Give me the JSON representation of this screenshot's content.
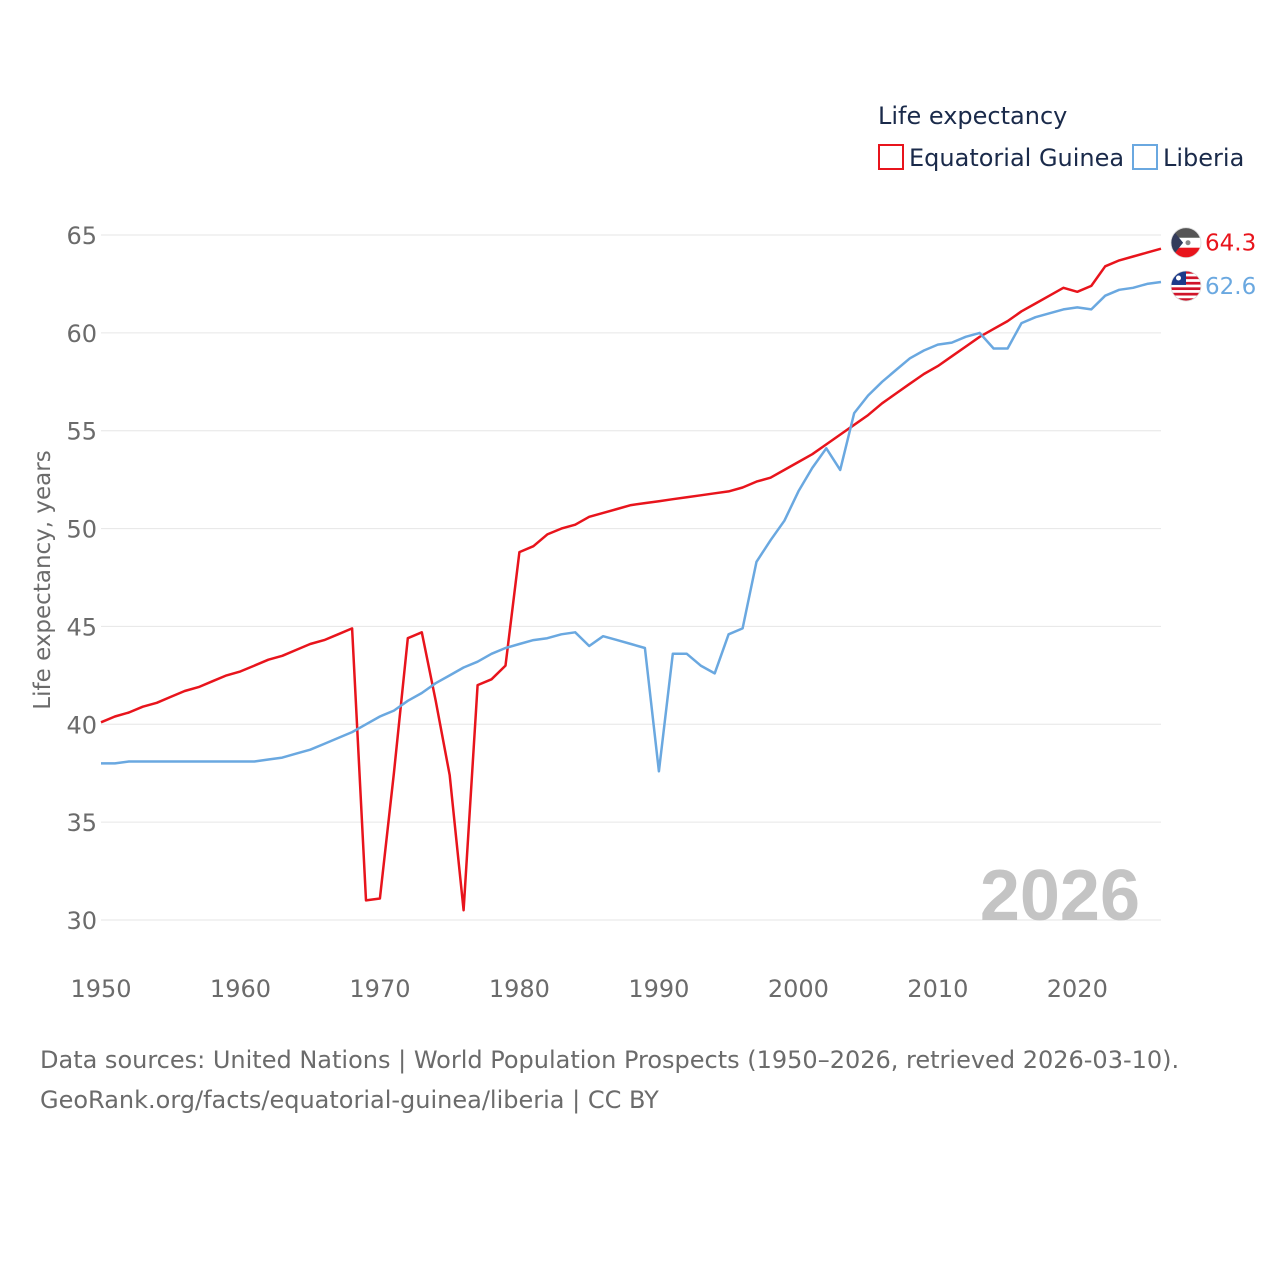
{
  "chart_data": {
    "type": "line",
    "title": "",
    "legend_title": "Life expectancy",
    "legend_position": "top-right",
    "ylabel": "Life expectancy, years",
    "xlabel": "",
    "xlim": [
      1950,
      2026
    ],
    "ylim": [
      28,
      65.5
    ],
    "x_ticks": [
      "1950",
      "1960",
      "1970",
      "1980",
      "1990",
      "2000",
      "2010",
      "2020"
    ],
    "y_ticks": [
      "30",
      "35",
      "40",
      "45",
      "50",
      "55",
      "60",
      "65"
    ],
    "grid": true,
    "year_watermark": "2026",
    "x": [
      1950,
      1951,
      1952,
      1953,
      1954,
      1955,
      1956,
      1957,
      1958,
      1959,
      1960,
      1961,
      1962,
      1963,
      1964,
      1965,
      1966,
      1967,
      1968,
      1969,
      1970,
      1971,
      1972,
      1973,
      1974,
      1975,
      1976,
      1977,
      1978,
      1979,
      1980,
      1981,
      1982,
      1983,
      1984,
      1985,
      1986,
      1987,
      1988,
      1989,
      1990,
      1991,
      1992,
      1993,
      1994,
      1995,
      1996,
      1997,
      1998,
      1999,
      2000,
      2001,
      2002,
      2003,
      2004,
      2005,
      2006,
      2007,
      2008,
      2009,
      2010,
      2011,
      2012,
      2013,
      2014,
      2015,
      2016,
      2017,
      2018,
      2019,
      2020,
      2021,
      2022,
      2023,
      2024,
      2025,
      2026
    ],
    "series": [
      {
        "name": "Equatorial Guinea",
        "color": "#e8141c",
        "end_label": "64.3",
        "values": [
          40.1,
          40.4,
          40.6,
          40.9,
          41.1,
          41.4,
          41.7,
          41.9,
          42.2,
          42.5,
          42.7,
          43.0,
          43.3,
          43.5,
          43.8,
          44.1,
          44.3,
          44.6,
          44.9,
          31.0,
          31.1,
          37.5,
          44.4,
          44.7,
          41.2,
          37.4,
          30.5,
          42.0,
          42.3,
          43.0,
          48.8,
          49.1,
          49.7,
          50.0,
          50.2,
          50.6,
          50.8,
          51.0,
          51.2,
          51.3,
          51.4,
          51.5,
          51.6,
          51.7,
          51.8,
          51.9,
          52.1,
          52.4,
          52.6,
          53.0,
          53.4,
          53.8,
          54.3,
          54.8,
          55.3,
          55.8,
          56.4,
          56.9,
          57.4,
          57.9,
          58.3,
          58.8,
          59.3,
          59.8,
          60.2,
          60.6,
          61.1,
          61.5,
          61.9,
          62.3,
          62.1,
          62.4,
          63.4,
          63.7,
          63.9,
          64.1,
          64.3
        ]
      },
      {
        "name": "Liberia",
        "color": "#6aa8e0",
        "end_label": "62.6",
        "values": [
          38.0,
          38.0,
          38.1,
          38.1,
          38.1,
          38.1,
          38.1,
          38.1,
          38.1,
          38.1,
          38.1,
          38.1,
          38.2,
          38.3,
          38.5,
          38.7,
          39.0,
          39.3,
          39.6,
          40.0,
          40.4,
          40.7,
          41.2,
          41.6,
          42.1,
          42.5,
          42.9,
          43.2,
          43.6,
          43.9,
          44.1,
          44.3,
          44.4,
          44.6,
          44.7,
          44.0,
          44.5,
          44.3,
          44.1,
          43.9,
          37.6,
          43.6,
          43.6,
          43.0,
          42.6,
          44.6,
          44.9,
          48.3,
          49.4,
          50.4,
          51.9,
          53.1,
          54.1,
          53.0,
          55.9,
          56.8,
          57.5,
          58.1,
          58.7,
          59.1,
          59.4,
          59.5,
          59.8,
          60.0,
          59.2,
          59.2,
          60.5,
          60.8,
          61.0,
          61.2,
          61.3,
          61.2,
          61.9,
          62.2,
          62.3,
          62.5,
          62.6
        ]
      }
    ]
  },
  "footer": {
    "line1": "Data sources: United Nations | World Population Prospects (1950–2026, retrieved 2026-03-10).",
    "line2": "GeoRank.org/facts/equatorial-guinea/liberia | CC BY"
  }
}
